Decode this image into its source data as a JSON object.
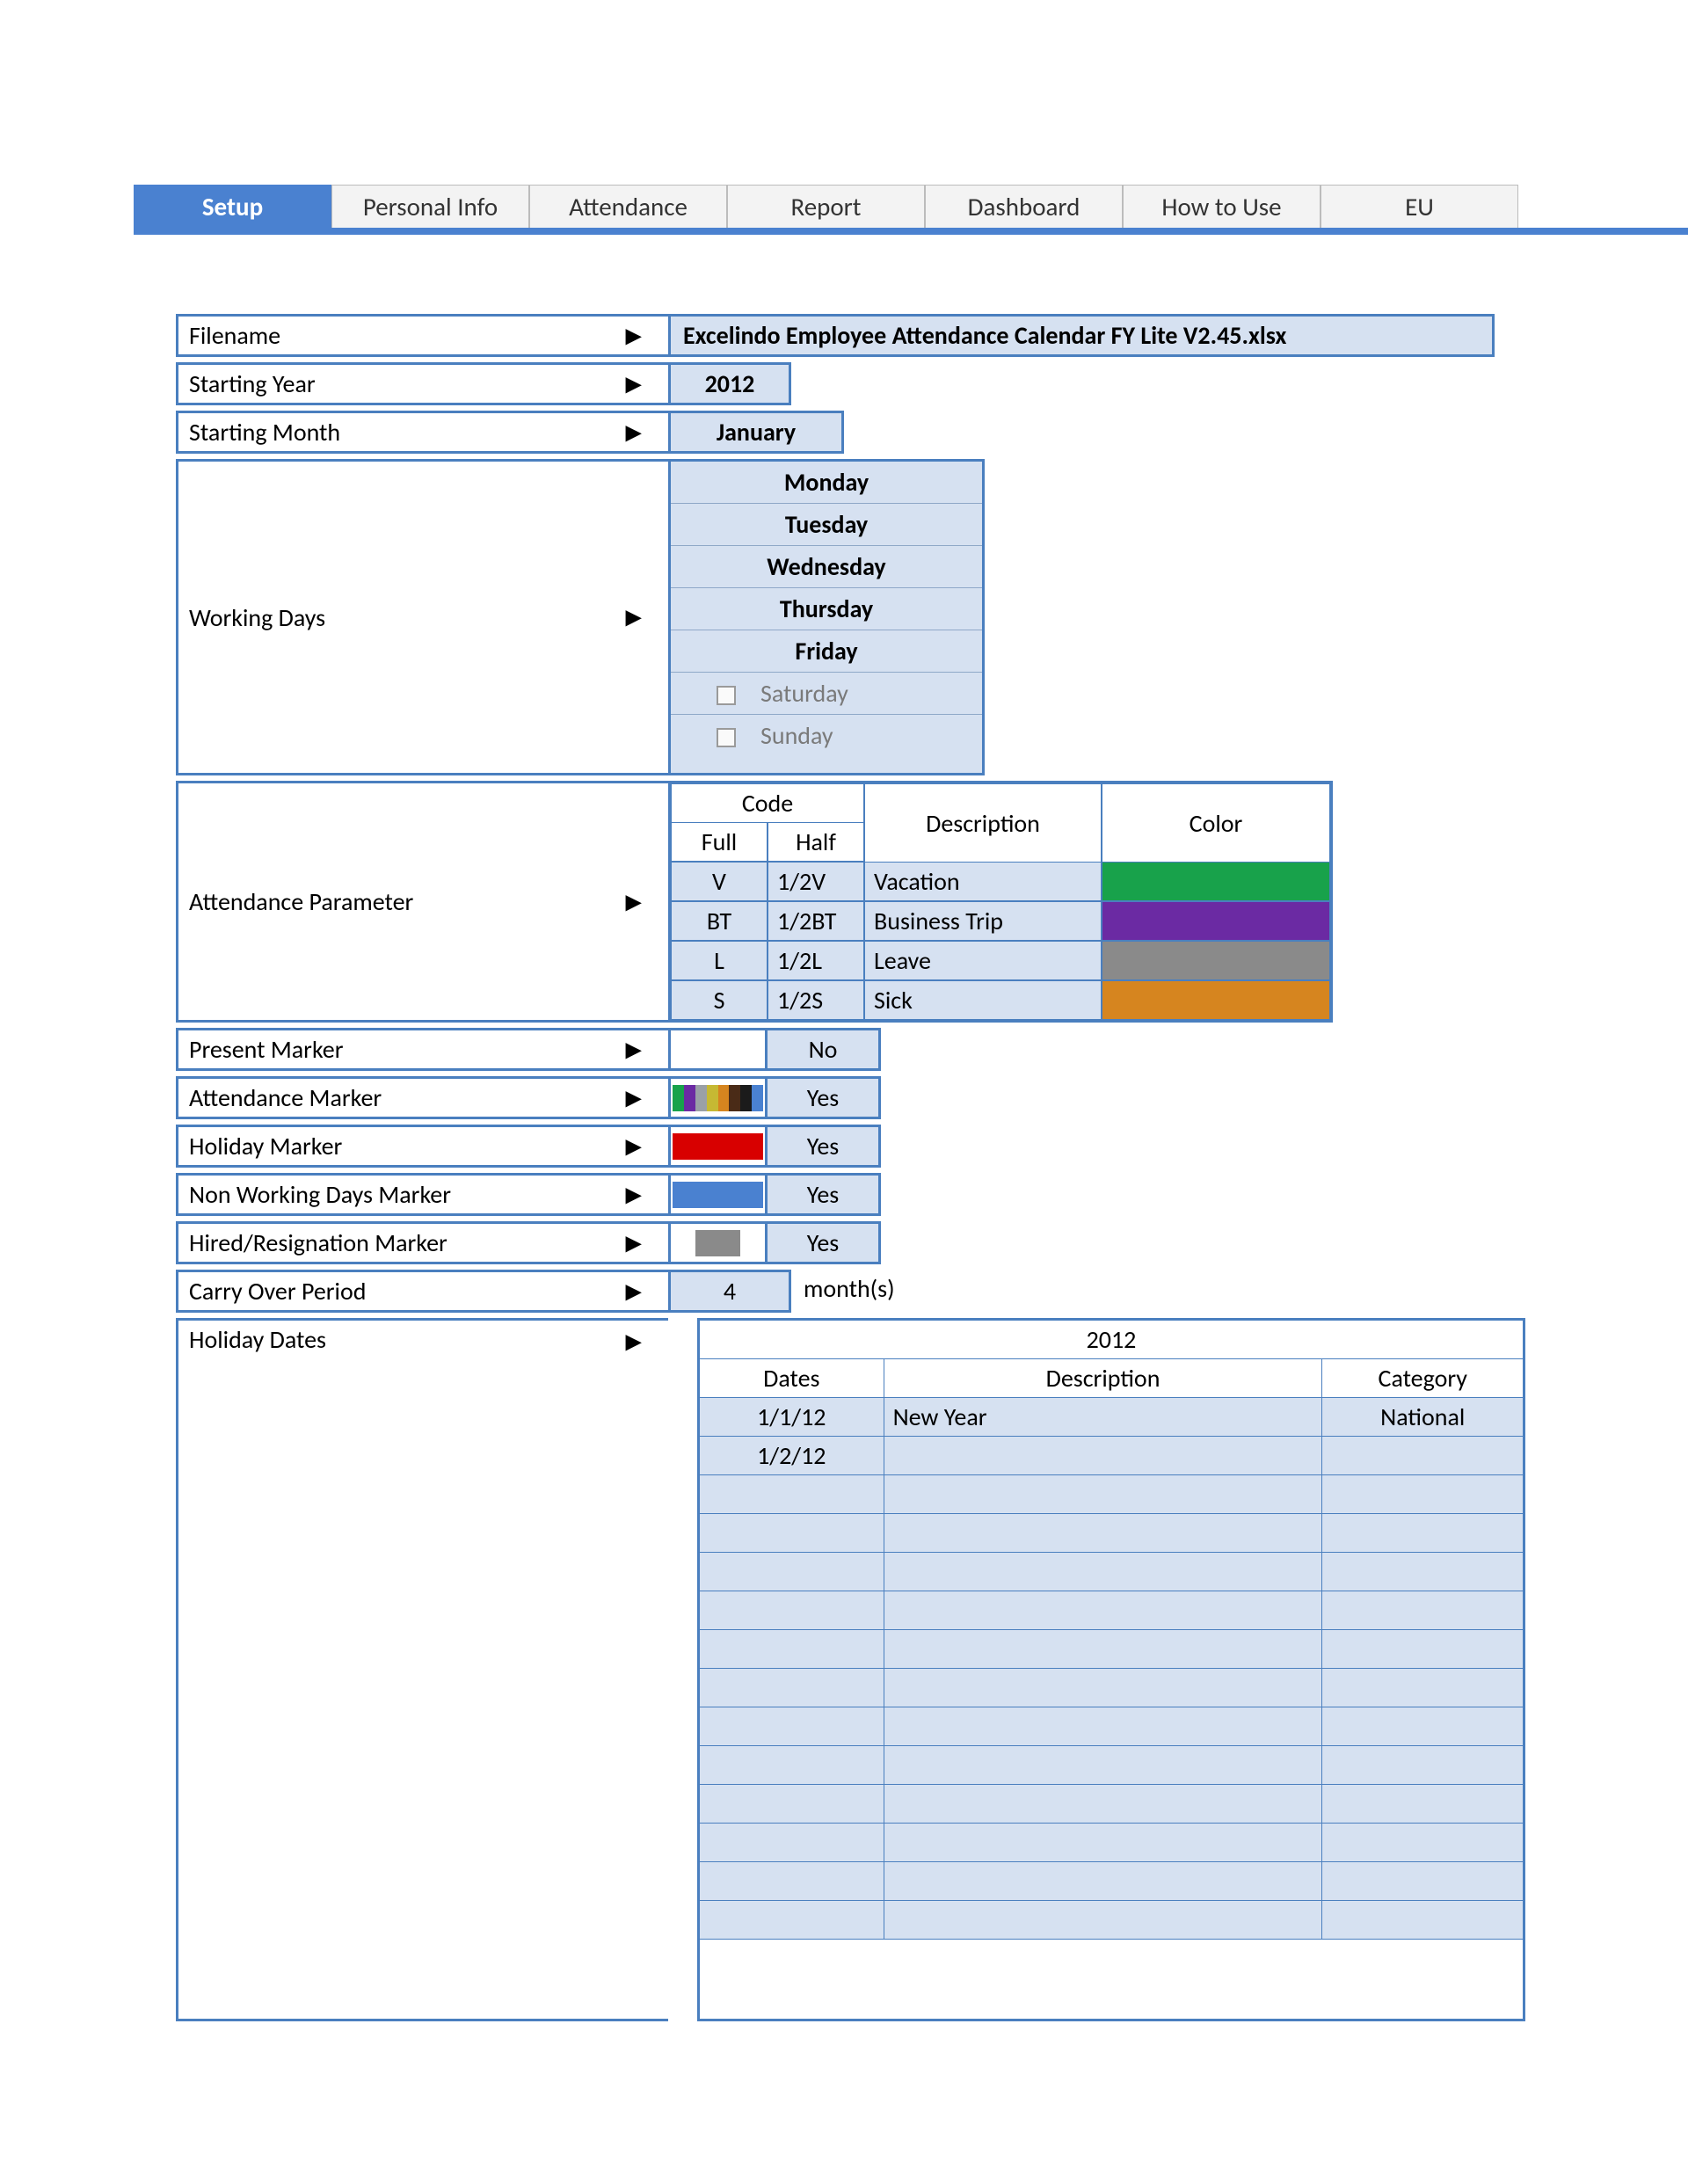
{
  "tabs": {
    "items": [
      "Setup",
      "Personal Info",
      "Attendance",
      "Report",
      "Dashboard",
      "How to Use",
      "EU"
    ],
    "active_index": 0
  },
  "setup": {
    "filename_label": "Filename",
    "filename_value": "Excelindo Employee Attendance Calendar FY Lite V2.45.xlsx",
    "starting_year_label": "Starting Year",
    "starting_year_value": "2012",
    "starting_month_label": "Starting Month",
    "starting_month_value": "January",
    "working_days_label": "Working Days",
    "working_days": [
      {
        "name": "Monday",
        "on": true
      },
      {
        "name": "Tuesday",
        "on": true
      },
      {
        "name": "Wednesday",
        "on": true
      },
      {
        "name": "Thursday",
        "on": true
      },
      {
        "name": "Friday",
        "on": true
      },
      {
        "name": "Saturday",
        "on": false
      },
      {
        "name": "Sunday",
        "on": false
      }
    ],
    "attendance_param_label": "Attendance Parameter",
    "attendance_headers": {
      "code": "Code",
      "full": "Full",
      "half": "Half",
      "description": "Description",
      "color": "Color"
    },
    "attendance_params": [
      {
        "full": "V",
        "half": "1/2V",
        "description": "Vacation",
        "color": "#18a24b"
      },
      {
        "full": "BT",
        "half": "1/2BT",
        "description": "Business Trip",
        "color": "#6b2aa3"
      },
      {
        "full": "L",
        "half": "1/2L",
        "description": "Leave",
        "color": "#8a8a8a"
      },
      {
        "full": "S",
        "half": "1/2S",
        "description": "Sick",
        "color": "#d6851f"
      }
    ],
    "present_marker_label": "Present Marker",
    "present_marker_value": "No",
    "attendance_marker_label": "Attendance Marker",
    "attendance_marker_value": "Yes",
    "attendance_marker_colors": [
      "#18a24b",
      "#6b2aa3",
      "#9aa0a6",
      "#c6b933",
      "#d6851f",
      "#4a2b17",
      "#1b1b1b",
      "#4a81d0"
    ],
    "holiday_marker_label": "Holiday Marker",
    "holiday_marker_value": "Yes",
    "holiday_marker_color": "#d80000",
    "nonworking_marker_label": "Non Working Days Marker",
    "nonworking_marker_value": "Yes",
    "nonworking_marker_color": "#4a81d0",
    "hired_resign_marker_label": "Hired/Resignation Marker",
    "hired_resign_marker_value": "Yes",
    "hired_resign_marker_color": "#8a8a8a",
    "carry_over_label": "Carry Over Period",
    "carry_over_value": "4",
    "carry_over_suffix": "month(s)",
    "holiday_dates_label": "Holiday Dates",
    "holiday_year": "2012",
    "holiday_headers": {
      "dates": "Dates",
      "description": "Description",
      "category": "Category"
    },
    "holiday_rows": [
      {
        "date": "1/1/12",
        "description": "New Year",
        "category": "National"
      },
      {
        "date": "1/2/12",
        "description": "",
        "category": ""
      },
      {
        "date": "",
        "description": "",
        "category": ""
      },
      {
        "date": "",
        "description": "",
        "category": ""
      },
      {
        "date": "",
        "description": "",
        "category": ""
      },
      {
        "date": "",
        "description": "",
        "category": ""
      },
      {
        "date": "",
        "description": "",
        "category": ""
      },
      {
        "date": "",
        "description": "",
        "category": ""
      },
      {
        "date": "",
        "description": "",
        "category": ""
      },
      {
        "date": "",
        "description": "",
        "category": ""
      },
      {
        "date": "",
        "description": "",
        "category": ""
      },
      {
        "date": "",
        "description": "",
        "category": ""
      },
      {
        "date": "",
        "description": "",
        "category": ""
      },
      {
        "date": "",
        "description": "",
        "category": ""
      }
    ]
  },
  "style": {
    "accent": "#4a81d0",
    "cell_fill": "#d6e1f1",
    "border": "#4a7fbf",
    "tab_bg": "#f3f3f3"
  }
}
